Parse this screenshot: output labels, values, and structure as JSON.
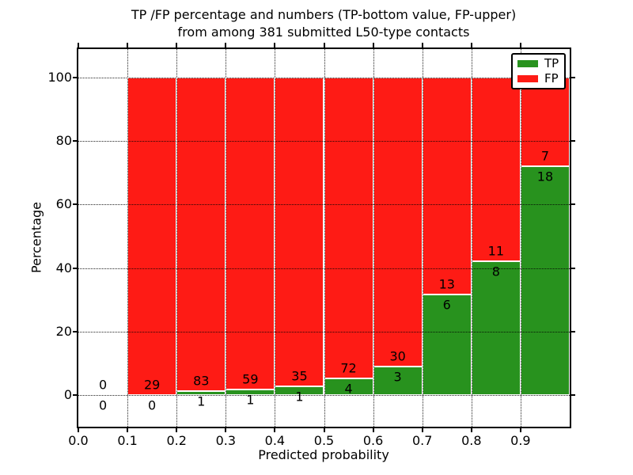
{
  "figure": {
    "title_line1": "TP /FP percentage and numbers (TP-bottom value, FP-upper)",
    "title_line2": "from among 381 submitted L50-type contacts",
    "xlabel": "Predicted probability",
    "ylabel": "Percentage"
  },
  "legend": {
    "items": [
      {
        "label": "TP",
        "color": "#28921e"
      },
      {
        "label": "FP",
        "color": "#fe1b15"
      }
    ]
  },
  "chart_data": {
    "type": "bar",
    "stacked": true,
    "title": "TP /FP percentage and numbers (TP-bottom value, FP-upper) from among 381 submitted L50-type contacts",
    "total_contacts": 381,
    "xlabel": "Predicted probability",
    "ylabel": "Percentage",
    "grid": true,
    "legend_position": "upper-right",
    "colors": {
      "tp": "#28921e",
      "fp": "#fe1b15"
    },
    "x": {
      "ticks": [
        "0.0",
        "0.1",
        "0.2",
        "0.3",
        "0.4",
        "0.5",
        "0.6",
        "0.7",
        "0.8",
        "0.9"
      ],
      "lim": [
        0.0,
        1.0
      ],
      "bin_width": 0.1
    },
    "y": {
      "ticks": [
        0,
        20,
        40,
        60,
        80,
        100
      ],
      "lim": [
        -10,
        109
      ]
    },
    "bins": [
      {
        "x_start": 0.0,
        "tp": 0,
        "fp": 0,
        "tp_pct": 0,
        "fp_pct": 0
      },
      {
        "x_start": 0.1,
        "tp": 0,
        "fp": 29,
        "tp_pct": 0,
        "fp_pct": 100
      },
      {
        "x_start": 0.2,
        "tp": 1,
        "fp": 83,
        "tp_pct": 1.19,
        "fp_pct": 98.81
      },
      {
        "x_start": 0.3,
        "tp": 1,
        "fp": 59,
        "tp_pct": 1.67,
        "fp_pct": 98.33
      },
      {
        "x_start": 0.4,
        "tp": 1,
        "fp": 35,
        "tp_pct": 2.78,
        "fp_pct": 97.22
      },
      {
        "x_start": 0.5,
        "tp": 4,
        "fp": 72,
        "tp_pct": 5.26,
        "fp_pct": 94.74
      },
      {
        "x_start": 0.6,
        "tp": 3,
        "fp": 30,
        "tp_pct": 9.09,
        "fp_pct": 90.91
      },
      {
        "x_start": 0.7,
        "tp": 6,
        "fp": 13,
        "tp_pct": 31.58,
        "fp_pct": 68.42
      },
      {
        "x_start": 0.8,
        "tp": 8,
        "fp": 11,
        "tp_pct": 42.11,
        "fp_pct": 57.89
      },
      {
        "x_start": 0.9,
        "tp": 18,
        "fp": 7,
        "tp_pct": 72.0,
        "fp_pct": 28.0
      }
    ]
  }
}
